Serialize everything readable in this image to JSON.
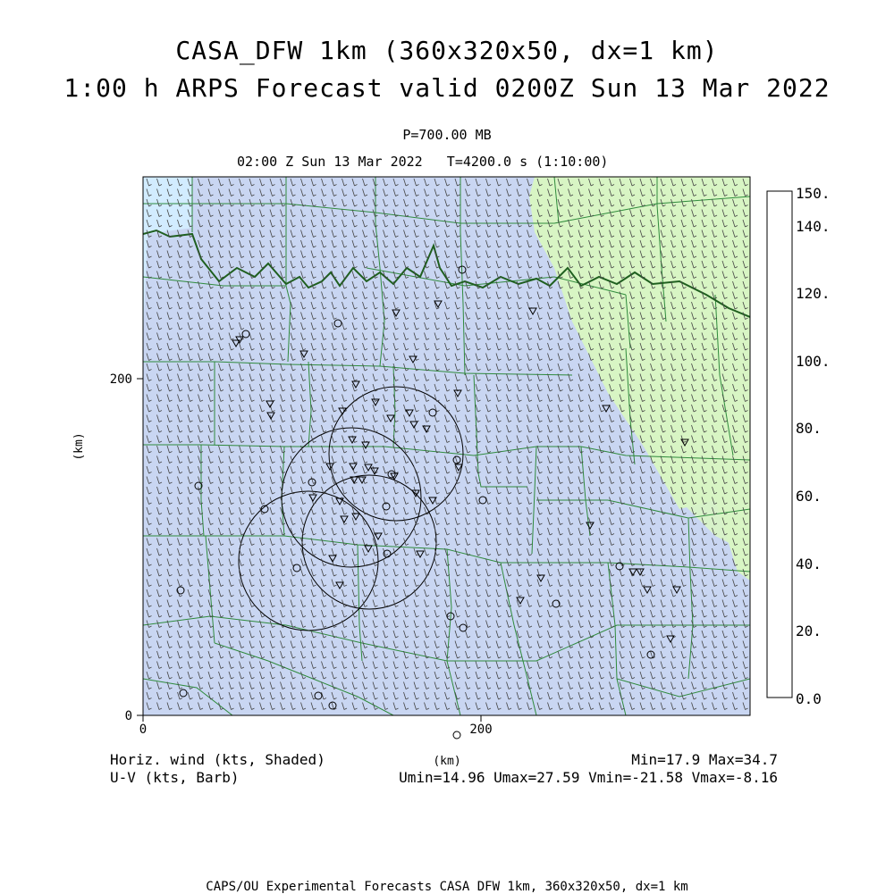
{
  "title_line1": "CASA_DFW 1km (360x320x50, dx=1 km)",
  "title_line2": "1:00 h ARPS Forecast valid 0200Z Sun 13 Mar 2022",
  "level": "P=700.00 MB",
  "subtitle": "02:00 Z Sun 13 Mar 2022   T=4200.0 s (1:10:00)",
  "axes": {
    "x_ticks": [
      "0",
      "200"
    ],
    "y_ticks": [
      "0",
      "200"
    ],
    "x_label": "(km)",
    "y_label": "(km)"
  },
  "colorbar": {
    "labels": [
      "150.",
      "140.",
      "120.",
      "100.",
      "80.",
      "60.",
      "40.",
      "20.",
      "0.0"
    ],
    "colors": [
      "#e6f7ff",
      "#d2ecff",
      "#c9d6f2",
      "#d8f5c4",
      "#c6ef96",
      "#b8ea5e",
      "#e8f52e",
      "#ffe82a",
      "#ffcc22",
      "#ffaa22",
      "#ff8c1a",
      "#ff6a10",
      "#ff420a",
      "#f0280a",
      "#d6140a",
      "#b80000"
    ]
  },
  "footer_left": {
    "line1": "Horiz. wind (kts, Shaded)",
    "line2": "U-V (kts, Barb)"
  },
  "footer_right": {
    "line1": "Min=17.9 Max=34.7",
    "line2": "Umin=14.96 Umax=27.59 Vmin=-21.58 Vmax=-8.16"
  },
  "footer_center_label": "(km)",
  "bottom_caption": "CAPS/OU Experimental Forecasts  CASA DFW 1km, 360x320x50, dx=1 km"
}
